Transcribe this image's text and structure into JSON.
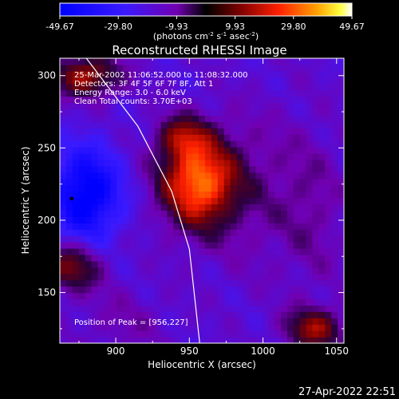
{
  "chart_data": {
    "type": "heatmap",
    "title": "Reconstructed RHESSI Image",
    "xlabel": "Heliocentric X (arcsec)",
    "ylabel": "Heliocentric Y (arcsec)",
    "xlim": [
      862,
      1055
    ],
    "ylim": [
      115,
      312
    ],
    "x_ticks": [
      900,
      950,
      1000,
      1050
    ],
    "y_ticks": [
      150,
      200,
      250,
      300
    ],
    "colorbar": {
      "tick_labels": [
        "-49.67",
        "-29.80",
        "-9.93",
        "9.93",
        "29.80",
        "49.67"
      ],
      "min": -49.67,
      "max": 49.67,
      "units_text": "(photons cm",
      "units_exp1": "-2",
      "units_mid": " s",
      "units_exp2": "-1",
      "units_mid2": " asec",
      "units_exp3": "-2",
      "units_close": ")"
    },
    "annotations": [
      "25-Mar-2002 11:06:52.000 to 11:08:32.000",
      "Detectors: 3F 4F 5F 6F 7F 8F, Att 1",
      "Energy Range: 3.0 - 6.0 keV",
      "Clean     Total counts: 3.70E+03"
    ],
    "peak_text": "Position of Peak = [956,227]",
    "peak": [
      956,
      227
    ],
    "marker": [
      870,
      215
    ],
    "colors": {
      "low": "#0000ff",
      "zero": "#000000",
      "mid": "#e03000",
      "high": "#ffffff",
      "limb": "#ffffff"
    },
    "sources": [
      {
        "x": 956,
        "y": 227,
        "amp": 49.67,
        "sx": 18,
        "sy": 22
      },
      {
        "x": 945,
        "y": 258,
        "amp": 22,
        "sx": 12,
        "sy": 10
      },
      {
        "x": 880,
        "y": 300,
        "amp": 34,
        "sx": 16,
        "sy": 10
      },
      {
        "x": 870,
        "y": 168,
        "amp": 28,
        "sx": 14,
        "sy": 12
      },
      {
        "x": 1035,
        "y": 125,
        "amp": 30,
        "sx": 14,
        "sy": 10
      },
      {
        "x": 880,
        "y": 218,
        "amp": -36,
        "sx": 16,
        "sy": 22
      },
      {
        "x": 1000,
        "y": 220,
        "amp": 9,
        "sx": 30,
        "sy": 40
      },
      {
        "x": 905,
        "y": 130,
        "amp": 7,
        "sx": 22,
        "sy": 16
      },
      {
        "x": 1035,
        "y": 200,
        "amp": 6,
        "sx": 14,
        "sy": 40
      }
    ],
    "limb_curve": [
      [
        880,
        312
      ],
      [
        915,
        265
      ],
      [
        938,
        220
      ],
      [
        950,
        180
      ],
      [
        957,
        115
      ]
    ]
  },
  "footer": {
    "timestamp": "27-Apr-2022 22:51"
  }
}
